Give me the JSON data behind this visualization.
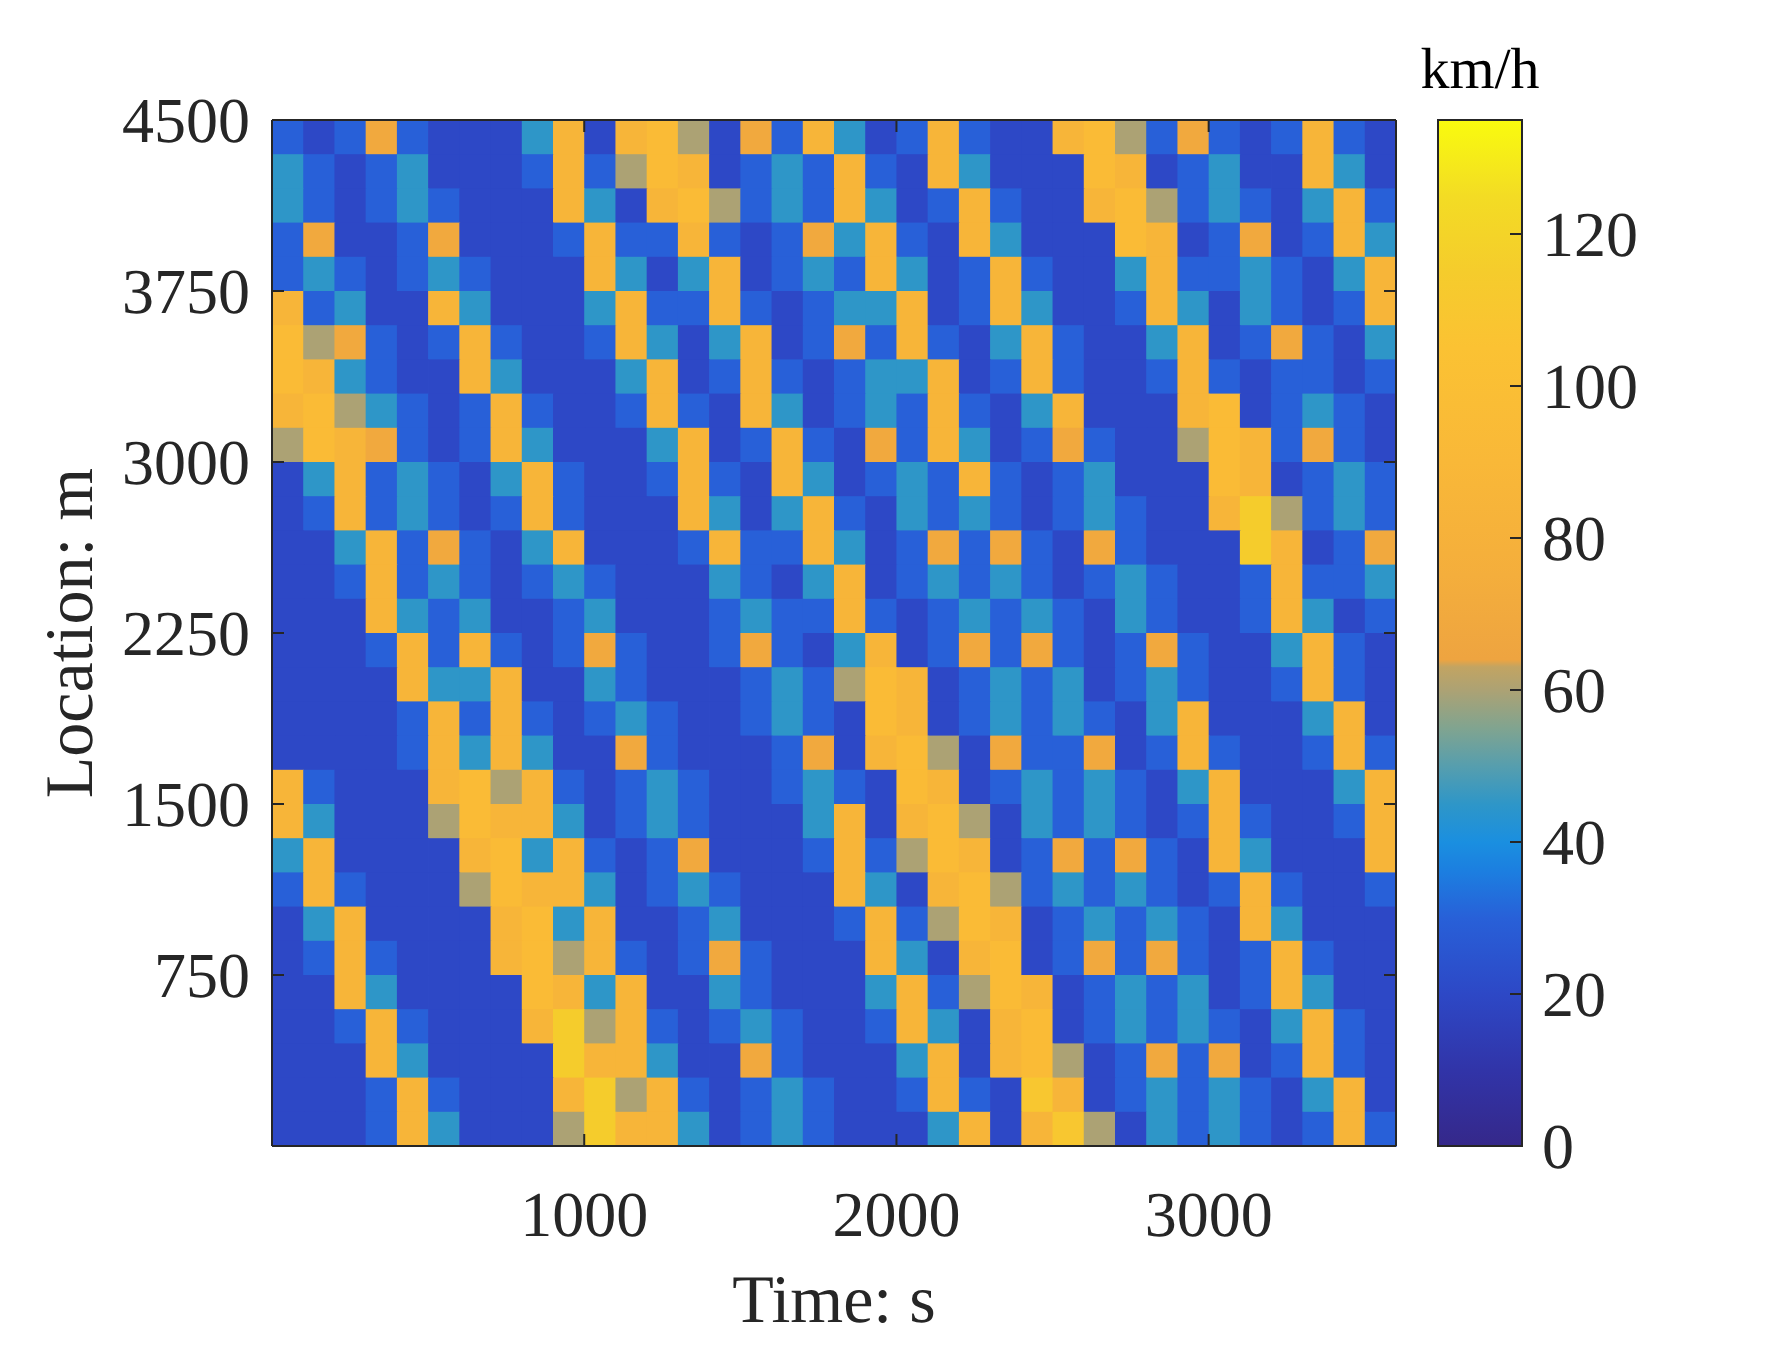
{
  "chart_data": {
    "type": "heatmap",
    "xlabel": "Time: s",
    "ylabel": "Location: m",
    "clabel": "km/h",
    "x": [
      50,
      150,
      250,
      350,
      450,
      550,
      650,
      750,
      850,
      950,
      1050,
      1150,
      1250,
      1350,
      1450,
      1550,
      1650,
      1750,
      1850,
      1950,
      2050,
      2150,
      2250,
      2350,
      2450,
      2550,
      2650,
      2750,
      2850,
      2950,
      3050,
      3150,
      3250,
      3350,
      3450,
      3550
    ],
    "xlim": [
      0,
      3600
    ],
    "xticks": [
      1000,
      2000,
      3000
    ],
    "ylim": [
      0,
      4500
    ],
    "yticks": [
      750,
      1500,
      2250,
      3000,
      3750,
      4500
    ],
    "clim": [
      0,
      135
    ],
    "cticks": [
      0,
      20,
      40,
      60,
      80,
      100,
      120
    ],
    "cells": [
      [
        30,
        20,
        30,
        70,
        30,
        20,
        20,
        20,
        45,
        85,
        20,
        85,
        95,
        60,
        20,
        70,
        30,
        85,
        45,
        20,
        30,
        85,
        30,
        20,
        20,
        85,
        95,
        60,
        30,
        70,
        30,
        20,
        30,
        85,
        30,
        20
      ],
      [
        45,
        30,
        20,
        30,
        45,
        20,
        20,
        20,
        30,
        85,
        30,
        60,
        95,
        85,
        20,
        30,
        45,
        30,
        85,
        30,
        20,
        85,
        45,
        20,
        20,
        20,
        95,
        85,
        20,
        30,
        45,
        20,
        20,
        85,
        45,
        20
      ],
      [
        45,
        30,
        20,
        30,
        45,
        30,
        20,
        20,
        20,
        85,
        45,
        20,
        85,
        95,
        60,
        30,
        45,
        30,
        85,
        45,
        20,
        30,
        85,
        30,
        20,
        20,
        85,
        95,
        60,
        30,
        45,
        30,
        20,
        45,
        85,
        30
      ],
      [
        30,
        70,
        20,
        20,
        30,
        70,
        20,
        20,
        20,
        30,
        85,
        30,
        30,
        85,
        30,
        20,
        30,
        70,
        45,
        85,
        30,
        20,
        85,
        45,
        20,
        20,
        20,
        95,
        85,
        20,
        30,
        70,
        20,
        30,
        85,
        45
      ],
      [
        30,
        45,
        30,
        20,
        30,
        45,
        30,
        20,
        20,
        20,
        85,
        45,
        20,
        45,
        85,
        20,
        30,
        45,
        30,
        85,
        45,
        20,
        30,
        85,
        30,
        20,
        20,
        45,
        85,
        30,
        30,
        45,
        30,
        20,
        45,
        85
      ],
      [
        85,
        30,
        45,
        20,
        20,
        85,
        45,
        20,
        20,
        20,
        45,
        85,
        30,
        30,
        85,
        30,
        20,
        30,
        45,
        45,
        85,
        20,
        30,
        85,
        45,
        20,
        20,
        30,
        85,
        45,
        20,
        45,
        30,
        20,
        30,
        85
      ],
      [
        95,
        60,
        70,
        30,
        20,
        30,
        85,
        30,
        20,
        20,
        30,
        85,
        45,
        20,
        45,
        85,
        20,
        30,
        70,
        30,
        85,
        30,
        20,
        45,
        85,
        30,
        20,
        20,
        45,
        85,
        20,
        30,
        70,
        30,
        20,
        45
      ],
      [
        95,
        85,
        45,
        30,
        20,
        20,
        85,
        45,
        20,
        20,
        20,
        45,
        85,
        20,
        30,
        85,
        30,
        20,
        30,
        45,
        45,
        85,
        20,
        30,
        85,
        30,
        20,
        20,
        30,
        85,
        30,
        20,
        30,
        30,
        20,
        30
      ],
      [
        85,
        95,
        60,
        45,
        30,
        20,
        30,
        85,
        30,
        20,
        20,
        30,
        85,
        30,
        20,
        85,
        45,
        20,
        30,
        45,
        30,
        85,
        30,
        20,
        45,
        85,
        20,
        20,
        20,
        85,
        95,
        20,
        30,
        45,
        30,
        20
      ],
      [
        60,
        95,
        85,
        70,
        30,
        20,
        30,
        85,
        45,
        20,
        20,
        20,
        45,
        85,
        20,
        30,
        85,
        30,
        20,
        70,
        30,
        85,
        45,
        20,
        30,
        70,
        30,
        20,
        20,
        60,
        95,
        85,
        30,
        70,
        30,
        20
      ],
      [
        20,
        45,
        85,
        30,
        45,
        30,
        20,
        45,
        85,
        30,
        20,
        20,
        30,
        85,
        30,
        20,
        85,
        45,
        20,
        30,
        45,
        30,
        85,
        30,
        20,
        30,
        45,
        20,
        20,
        20,
        95,
        85,
        20,
        30,
        45,
        30
      ],
      [
        20,
        30,
        85,
        30,
        45,
        30,
        20,
        30,
        85,
        30,
        20,
        20,
        20,
        85,
        45,
        20,
        45,
        85,
        30,
        20,
        45,
        30,
        45,
        30,
        20,
        30,
        45,
        30,
        20,
        20,
        85,
        115,
        60,
        30,
        45,
        30
      ],
      [
        20,
        20,
        45,
        85,
        30,
        70,
        30,
        20,
        45,
        85,
        20,
        20,
        20,
        30,
        85,
        30,
        30,
        85,
        45,
        20,
        30,
        70,
        30,
        70,
        30,
        20,
        70,
        30,
        20,
        20,
        20,
        115,
        85,
        20,
        30,
        70
      ],
      [
        20,
        20,
        30,
        85,
        30,
        45,
        30,
        20,
        30,
        45,
        30,
        20,
        20,
        20,
        45,
        30,
        20,
        45,
        85,
        20,
        30,
        45,
        30,
        45,
        30,
        20,
        30,
        45,
        30,
        20,
        20,
        30,
        85,
        30,
        30,
        45
      ],
      [
        20,
        20,
        20,
        85,
        45,
        30,
        45,
        20,
        20,
        30,
        45,
        20,
        20,
        20,
        30,
        45,
        30,
        30,
        85,
        30,
        20,
        30,
        45,
        30,
        45,
        30,
        20,
        45,
        30,
        20,
        20,
        30,
        85,
        45,
        20,
        30
      ],
      [
        20,
        20,
        20,
        30,
        85,
        30,
        85,
        30,
        20,
        30,
        70,
        30,
        20,
        20,
        30,
        70,
        30,
        20,
        45,
        85,
        20,
        30,
        70,
        30,
        70,
        30,
        20,
        30,
        70,
        30,
        20,
        20,
        45,
        85,
        30,
        20
      ],
      [
        20,
        20,
        20,
        20,
        85,
        45,
        45,
        85,
        20,
        20,
        45,
        30,
        20,
        20,
        20,
        30,
        45,
        30,
        60,
        95,
        85,
        20,
        30,
        45,
        30,
        45,
        20,
        30,
        45,
        30,
        20,
        20,
        30,
        85,
        30,
        20
      ],
      [
        20,
        20,
        20,
        20,
        30,
        85,
        30,
        85,
        30,
        20,
        30,
        45,
        30,
        20,
        20,
        30,
        45,
        30,
        20,
        95,
        85,
        20,
        30,
        45,
        30,
        45,
        30,
        20,
        45,
        85,
        20,
        20,
        20,
        45,
        85,
        20
      ],
      [
        20,
        20,
        20,
        20,
        30,
        85,
        45,
        85,
        45,
        20,
        20,
        70,
        30,
        20,
        20,
        20,
        30,
        70,
        20,
        85,
        95,
        60,
        20,
        70,
        30,
        30,
        70,
        20,
        30,
        85,
        30,
        20,
        20,
        30,
        85,
        30
      ],
      [
        85,
        30,
        20,
        20,
        20,
        85,
        95,
        60,
        85,
        30,
        20,
        30,
        45,
        30,
        20,
        20,
        30,
        45,
        30,
        20,
        95,
        85,
        20,
        30,
        45,
        30,
        45,
        30,
        20,
        45,
        85,
        20,
        20,
        20,
        45,
        85
      ],
      [
        85,
        45,
        20,
        20,
        20,
        60,
        95,
        85,
        85,
        45,
        20,
        30,
        45,
        30,
        20,
        20,
        20,
        45,
        85,
        20,
        85,
        95,
        60,
        20,
        45,
        30,
        45,
        30,
        20,
        30,
        85,
        30,
        20,
        20,
        30,
        85
      ],
      [
        45,
        85,
        20,
        20,
        20,
        20,
        85,
        95,
        45,
        85,
        30,
        20,
        30,
        70,
        20,
        20,
        20,
        30,
        85,
        30,
        60,
        95,
        85,
        20,
        30,
        70,
        30,
        70,
        30,
        20,
        85,
        45,
        20,
        20,
        20,
        85
      ],
      [
        30,
        85,
        30,
        20,
        20,
        20,
        60,
        95,
        85,
        85,
        45,
        20,
        30,
        45,
        30,
        20,
        20,
        20,
        85,
        45,
        20,
        85,
        95,
        60,
        30,
        45,
        30,
        45,
        30,
        20,
        30,
        85,
        30,
        20,
        20,
        30
      ],
      [
        20,
        45,
        85,
        20,
        20,
        20,
        20,
        85,
        95,
        45,
        85,
        20,
        20,
        30,
        45,
        20,
        20,
        20,
        30,
        85,
        30,
        60,
        95,
        85,
        20,
        30,
        45,
        30,
        45,
        30,
        20,
        85,
        45,
        20,
        20,
        20
      ],
      [
        20,
        30,
        85,
        30,
        20,
        20,
        20,
        85,
        95,
        60,
        85,
        30,
        20,
        30,
        70,
        30,
        20,
        20,
        20,
        85,
        45,
        20,
        85,
        95,
        20,
        30,
        70,
        30,
        70,
        30,
        20,
        30,
        85,
        30,
        20,
        20
      ],
      [
        20,
        20,
        85,
        45,
        20,
        20,
        20,
        20,
        95,
        85,
        45,
        85,
        20,
        20,
        45,
        30,
        20,
        20,
        20,
        45,
        85,
        30,
        60,
        95,
        85,
        20,
        30,
        45,
        30,
        45,
        20,
        30,
        85,
        45,
        20,
        20
      ],
      [
        20,
        20,
        30,
        85,
        30,
        20,
        20,
        20,
        85,
        115,
        60,
        85,
        30,
        20,
        30,
        45,
        30,
        20,
        20,
        30,
        85,
        45,
        20,
        85,
        95,
        20,
        30,
        45,
        30,
        45,
        30,
        20,
        45,
        85,
        30,
        20
      ],
      [
        20,
        20,
        20,
        85,
        45,
        20,
        20,
        20,
        20,
        115,
        85,
        85,
        45,
        20,
        20,
        70,
        30,
        20,
        20,
        20,
        45,
        85,
        20,
        85,
        95,
        60,
        20,
        30,
        70,
        30,
        70,
        20,
        30,
        85,
        30,
        20
      ],
      [
        20,
        20,
        20,
        30,
        85,
        30,
        20,
        20,
        20,
        85,
        115,
        60,
        85,
        30,
        20,
        30,
        45,
        30,
        20,
        20,
        30,
        85,
        30,
        20,
        110,
        85,
        20,
        30,
        45,
        30,
        45,
        30,
        20,
        45,
        85,
        20
      ],
      [
        20,
        20,
        20,
        30,
        85,
        45,
        20,
        20,
        20,
        60,
        115,
        85,
        85,
        45,
        20,
        30,
        45,
        30,
        20,
        20,
        20,
        45,
        85,
        20,
        85,
        110,
        60,
        20,
        45,
        30,
        45,
        30,
        20,
        30,
        85,
        30
      ]
    ]
  }
}
